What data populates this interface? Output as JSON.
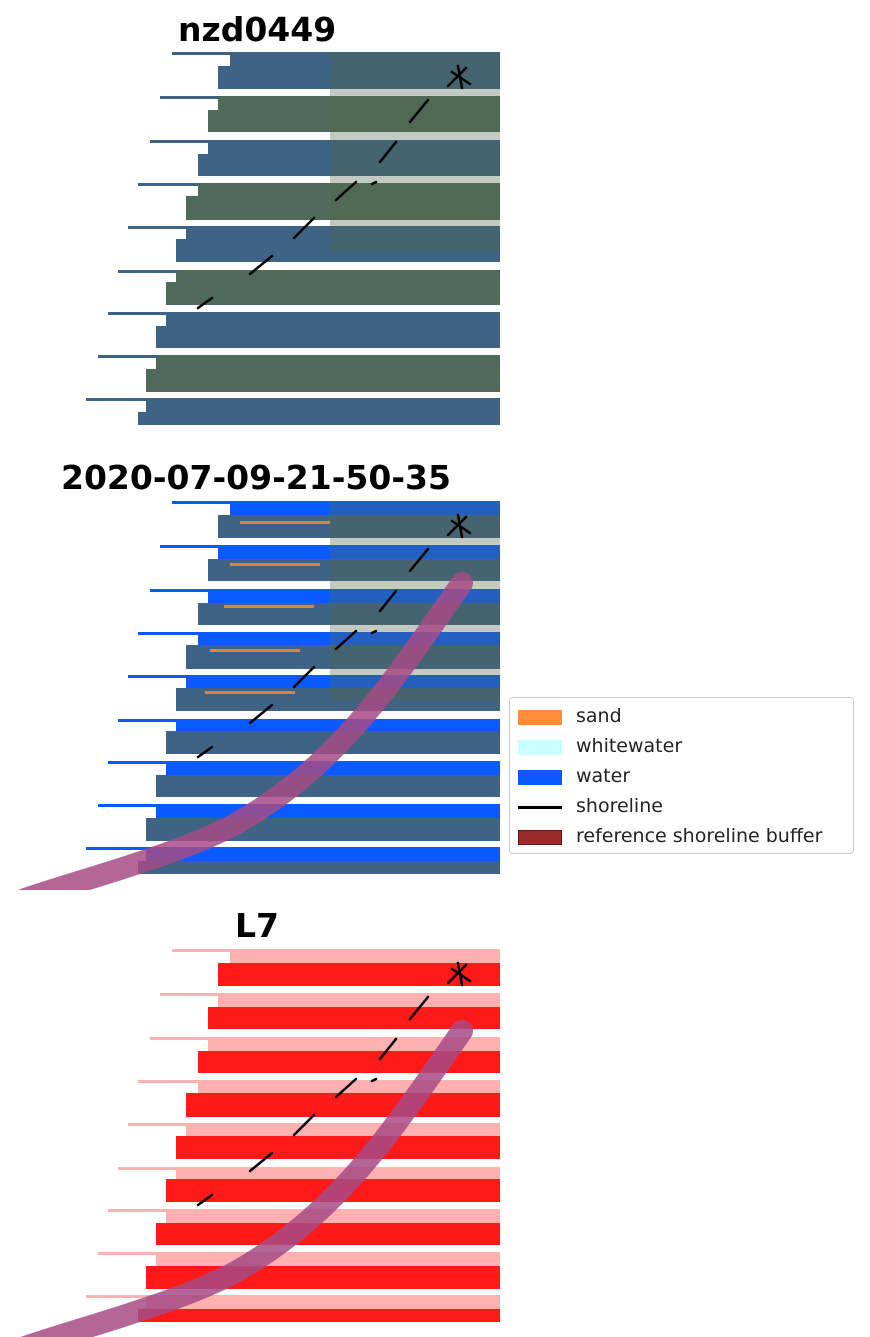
{
  "panels": [
    {
      "title": "nzd0449"
    },
    {
      "title": "2020-07-09-21-50-35"
    },
    {
      "title": "L7"
    }
  ],
  "legend": {
    "items": [
      {
        "label": "sand",
        "kind": "patch",
        "color": "#ff8c3a"
      },
      {
        "label": "whitewater",
        "kind": "patch",
        "color": "#c8ffff"
      },
      {
        "label": "water",
        "kind": "patch",
        "color": "#0a5aff"
      },
      {
        "label": "shoreline",
        "kind": "line",
        "color": "#000000"
      },
      {
        "label": "reference shoreline buffer",
        "kind": "patch",
        "color": "#9b2a2a"
      }
    ]
  },
  "colors": {
    "satellite_water": "#3e6384",
    "satellite_land": "#4f6a58",
    "classified_water": "#0a5aff",
    "classified_sand": "#ff8c3a",
    "index_high": "#ff1a1a",
    "index_low": "#ffb0b0",
    "buffer": "#a64b85"
  }
}
